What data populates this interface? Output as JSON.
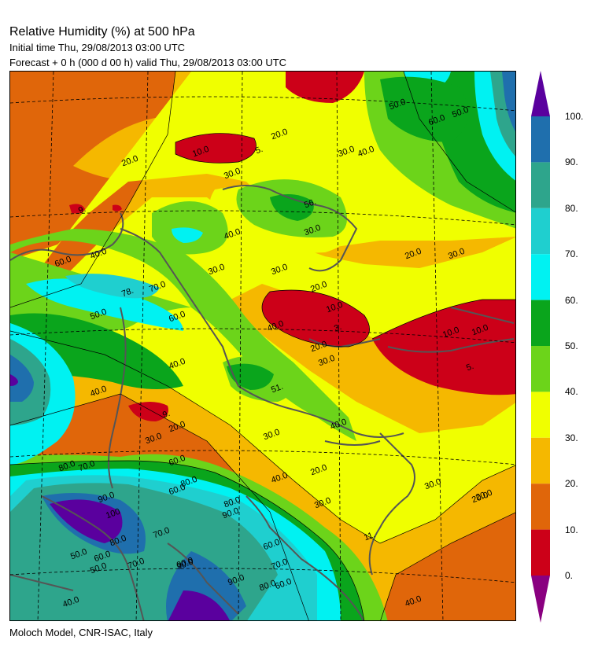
{
  "header": {
    "title": "Relative Humidity (%) at 500 hPa",
    "initial": "Initial time  Thu, 29/08/2013  03:00 UTC",
    "forecast": "Forecast  +   0 h  (000 d 00 h)  valid Thu, 29/08/2013 03:00 UTC"
  },
  "footer": "Moloch Model, CNR-ISAC, Italy",
  "legend": {
    "levels": [
      "100.",
      "90.",
      "80.",
      "70.",
      "60.",
      "50.",
      "40.",
      "30.",
      "20.",
      "10.",
      "0."
    ],
    "colors": [
      "#5a009e",
      "#1f6fad",
      "#2ea58c",
      "#1fcfcf",
      "#00f2f2",
      "#0aa51c",
      "#6cd41a",
      "#f0ff00",
      "#f5b800",
      "#e0660a",
      "#cc0018",
      "#8a0080"
    ]
  },
  "map": {
    "contour_labels": [
      {
        "text": "10.0"
      },
      {
        "text": "5."
      },
      {
        "text": "20.0"
      },
      {
        "text": "20.0"
      },
      {
        "text": "30.0"
      },
      {
        "text": "30.0"
      },
      {
        "text": "40.0"
      },
      {
        "text": "50.0"
      },
      {
        "text": "60.0"
      },
      {
        "text": "50.0"
      },
      {
        "text": "56."
      },
      {
        "text": "30.0"
      },
      {
        "text": "30.0"
      },
      {
        "text": "20.0"
      },
      {
        "text": "30.0"
      },
      {
        "text": "9."
      },
      {
        "text": "40.0"
      },
      {
        "text": "40.0"
      },
      {
        "text": "30.0"
      },
      {
        "text": "60.0"
      },
      {
        "text": "78."
      },
      {
        "text": "70.0"
      },
      {
        "text": "60.0"
      },
      {
        "text": "50.0"
      },
      {
        "text": "20.0"
      },
      {
        "text": "10.0"
      },
      {
        "text": "3."
      },
      {
        "text": "20.0"
      },
      {
        "text": "30.0"
      },
      {
        "text": "10.0"
      },
      {
        "text": "5."
      },
      {
        "text": "40.0"
      },
      {
        "text": "40.0"
      },
      {
        "text": "51."
      },
      {
        "text": "40.0"
      },
      {
        "text": "40.0"
      },
      {
        "text": "9."
      },
      {
        "text": "20.0"
      },
      {
        "text": "30.0"
      },
      {
        "text": "30.0"
      },
      {
        "text": "40.0"
      },
      {
        "text": "60.0"
      },
      {
        "text": "80.0"
      },
      {
        "text": "70.0"
      },
      {
        "text": "90.0"
      },
      {
        "text": "20.0"
      },
      {
        "text": "30.0"
      },
      {
        "text": "30.0"
      },
      {
        "text": "20.0"
      },
      {
        "text": "11."
      },
      {
        "text": "60.0"
      },
      {
        "text": "80.0"
      },
      {
        "text": "50.0"
      },
      {
        "text": "70.0"
      },
      {
        "text": "80.0"
      },
      {
        "text": "90.0"
      },
      {
        "text": "90.0"
      },
      {
        "text": "70.0"
      },
      {
        "text": "40.0"
      },
      {
        "text": "60.0"
      },
      {
        "text": "100"
      },
      {
        "text": "80.0"
      },
      {
        "text": "50.0"
      },
      {
        "text": "60.0"
      },
      {
        "text": "70.0"
      },
      {
        "text": "90.0"
      },
      {
        "text": "80.0"
      },
      {
        "text": "60.0"
      },
      {
        "text": "90.0"
      },
      {
        "text": "40.0"
      },
      {
        "text": "20.0"
      },
      {
        "text": "10.0"
      }
    ]
  }
}
